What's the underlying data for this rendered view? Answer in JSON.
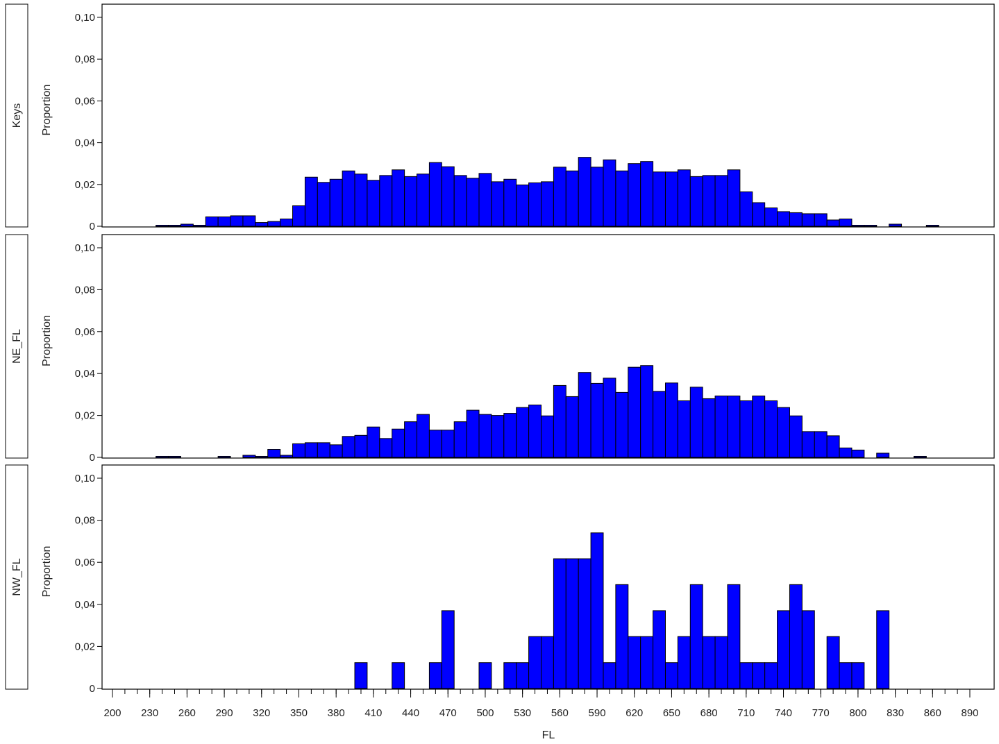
{
  "chart_data": {
    "type": "bar",
    "subtype": "histogram-panel",
    "xlabel": "FL",
    "ylabel": "Proportion",
    "bin_width": 10,
    "xlim": [
      195,
      900
    ],
    "ylim": [
      0,
      0.105
    ],
    "x_ticks": [
      200,
      230,
      260,
      290,
      320,
      350,
      380,
      410,
      440,
      470,
      500,
      530,
      560,
      590,
      620,
      650,
      680,
      710,
      740,
      770,
      800,
      830,
      860,
      890
    ],
    "y_ticks": [
      0,
      0.02,
      0.04,
      0.06,
      0.08,
      0.1
    ],
    "y_tick_labels": [
      "0",
      "0,02",
      "0,04",
      "0,06",
      "0,08",
      "0,10"
    ],
    "bar_color": "#0000ff",
    "grid": false,
    "panels": [
      {
        "name": "Keys",
        "bins": [
          {
            "x": 240,
            "y": 0.0005
          },
          {
            "x": 250,
            "y": 0.0005
          },
          {
            "x": 260,
            "y": 0.001
          },
          {
            "x": 270,
            "y": 0.0005
          },
          {
            "x": 280,
            "y": 0.0045
          },
          {
            "x": 290,
            "y": 0.0045
          },
          {
            "x": 300,
            "y": 0.005
          },
          {
            "x": 310,
            "y": 0.005
          },
          {
            "x": 320,
            "y": 0.0018
          },
          {
            "x": 330,
            "y": 0.0023
          },
          {
            "x": 340,
            "y": 0.0035
          },
          {
            "x": 350,
            "y": 0.0098
          },
          {
            "x": 360,
            "y": 0.0235
          },
          {
            "x": 370,
            "y": 0.021
          },
          {
            "x": 380,
            "y": 0.0225
          },
          {
            "x": 390,
            "y": 0.0265
          },
          {
            "x": 400,
            "y": 0.025
          },
          {
            "x": 410,
            "y": 0.022
          },
          {
            "x": 420,
            "y": 0.0243
          },
          {
            "x": 430,
            "y": 0.027
          },
          {
            "x": 440,
            "y": 0.0238
          },
          {
            "x": 450,
            "y": 0.025
          },
          {
            "x": 460,
            "y": 0.0305
          },
          {
            "x": 470,
            "y": 0.0285
          },
          {
            "x": 480,
            "y": 0.0243
          },
          {
            "x": 490,
            "y": 0.023
          },
          {
            "x": 500,
            "y": 0.0253
          },
          {
            "x": 510,
            "y": 0.0213
          },
          {
            "x": 520,
            "y": 0.0225
          },
          {
            "x": 530,
            "y": 0.0198
          },
          {
            "x": 540,
            "y": 0.0208
          },
          {
            "x": 550,
            "y": 0.0213
          },
          {
            "x": 560,
            "y": 0.0283
          },
          {
            "x": 570,
            "y": 0.0265
          },
          {
            "x": 580,
            "y": 0.033
          },
          {
            "x": 590,
            "y": 0.0283
          },
          {
            "x": 600,
            "y": 0.0318
          },
          {
            "x": 610,
            "y": 0.0265
          },
          {
            "x": 620,
            "y": 0.03
          },
          {
            "x": 630,
            "y": 0.031
          },
          {
            "x": 640,
            "y": 0.026
          },
          {
            "x": 650,
            "y": 0.026
          },
          {
            "x": 660,
            "y": 0.027
          },
          {
            "x": 670,
            "y": 0.0238
          },
          {
            "x": 680,
            "y": 0.0243
          },
          {
            "x": 690,
            "y": 0.0243
          },
          {
            "x": 700,
            "y": 0.027
          },
          {
            "x": 710,
            "y": 0.0165
          },
          {
            "x": 720,
            "y": 0.0113
          },
          {
            "x": 730,
            "y": 0.0088
          },
          {
            "x": 740,
            "y": 0.007
          },
          {
            "x": 750,
            "y": 0.0065
          },
          {
            "x": 760,
            "y": 0.006
          },
          {
            "x": 770,
            "y": 0.006
          },
          {
            "x": 780,
            "y": 0.003
          },
          {
            "x": 790,
            "y": 0.0035
          },
          {
            "x": 800,
            "y": 0.0005
          },
          {
            "x": 810,
            "y": 0.0005
          },
          {
            "x": 830,
            "y": 0.001
          },
          {
            "x": 860,
            "y": 0.0005
          }
        ]
      },
      {
        "name": "NE_FL",
        "bins": [
          {
            "x": 240,
            "y": 0.0005
          },
          {
            "x": 250,
            "y": 0.0005
          },
          {
            "x": 290,
            "y": 0.0005
          },
          {
            "x": 310,
            "y": 0.001
          },
          {
            "x": 320,
            "y": 0.0005
          },
          {
            "x": 330,
            "y": 0.0038
          },
          {
            "x": 340,
            "y": 0.001
          },
          {
            "x": 350,
            "y": 0.0065
          },
          {
            "x": 360,
            "y": 0.007
          },
          {
            "x": 370,
            "y": 0.007
          },
          {
            "x": 380,
            "y": 0.006
          },
          {
            "x": 390,
            "y": 0.01
          },
          {
            "x": 400,
            "y": 0.0105
          },
          {
            "x": 410,
            "y": 0.0145
          },
          {
            "x": 420,
            "y": 0.009
          },
          {
            "x": 430,
            "y": 0.0135
          },
          {
            "x": 440,
            "y": 0.017
          },
          {
            "x": 450,
            "y": 0.0205
          },
          {
            "x": 460,
            "y": 0.013
          },
          {
            "x": 470,
            "y": 0.013
          },
          {
            "x": 480,
            "y": 0.017
          },
          {
            "x": 490,
            "y": 0.0225
          },
          {
            "x": 500,
            "y": 0.0205
          },
          {
            "x": 510,
            "y": 0.02
          },
          {
            "x": 520,
            "y": 0.021
          },
          {
            "x": 530,
            "y": 0.0238
          },
          {
            "x": 540,
            "y": 0.025
          },
          {
            "x": 550,
            "y": 0.0198
          },
          {
            "x": 560,
            "y": 0.0343
          },
          {
            "x": 570,
            "y": 0.029
          },
          {
            "x": 580,
            "y": 0.0405
          },
          {
            "x": 590,
            "y": 0.0353
          },
          {
            "x": 600,
            "y": 0.0378
          },
          {
            "x": 610,
            "y": 0.031
          },
          {
            "x": 620,
            "y": 0.043
          },
          {
            "x": 630,
            "y": 0.0438
          },
          {
            "x": 640,
            "y": 0.0315
          },
          {
            "x": 650,
            "y": 0.0355
          },
          {
            "x": 660,
            "y": 0.027
          },
          {
            "x": 670,
            "y": 0.0335
          },
          {
            "x": 680,
            "y": 0.028
          },
          {
            "x": 690,
            "y": 0.0293
          },
          {
            "x": 700,
            "y": 0.0293
          },
          {
            "x": 710,
            "y": 0.027
          },
          {
            "x": 720,
            "y": 0.0293
          },
          {
            "x": 730,
            "y": 0.027
          },
          {
            "x": 740,
            "y": 0.0238
          },
          {
            "x": 750,
            "y": 0.0198
          },
          {
            "x": 760,
            "y": 0.0123
          },
          {
            "x": 770,
            "y": 0.0123
          },
          {
            "x": 780,
            "y": 0.0103
          },
          {
            "x": 790,
            "y": 0.0045
          },
          {
            "x": 800,
            "y": 0.0035
          },
          {
            "x": 820,
            "y": 0.002
          },
          {
            "x": 850,
            "y": 0.0005
          }
        ]
      },
      {
        "name": "NW_FL",
        "bins": [
          {
            "x": 400,
            "y": 0.0123
          },
          {
            "x": 430,
            "y": 0.0123
          },
          {
            "x": 460,
            "y": 0.0123
          },
          {
            "x": 470,
            "y": 0.037
          },
          {
            "x": 500,
            "y": 0.0123
          },
          {
            "x": 520,
            "y": 0.0123
          },
          {
            "x": 530,
            "y": 0.0123
          },
          {
            "x": 540,
            "y": 0.0247
          },
          {
            "x": 550,
            "y": 0.0247
          },
          {
            "x": 560,
            "y": 0.0617
          },
          {
            "x": 570,
            "y": 0.0617
          },
          {
            "x": 580,
            "y": 0.0617
          },
          {
            "x": 590,
            "y": 0.074
          },
          {
            "x": 600,
            "y": 0.0123
          },
          {
            "x": 610,
            "y": 0.0494
          },
          {
            "x": 620,
            "y": 0.0247
          },
          {
            "x": 630,
            "y": 0.0247
          },
          {
            "x": 640,
            "y": 0.037
          },
          {
            "x": 650,
            "y": 0.0123
          },
          {
            "x": 660,
            "y": 0.0247
          },
          {
            "x": 670,
            "y": 0.0494
          },
          {
            "x": 680,
            "y": 0.0247
          },
          {
            "x": 690,
            "y": 0.0247
          },
          {
            "x": 700,
            "y": 0.0494
          },
          {
            "x": 710,
            "y": 0.0123
          },
          {
            "x": 720,
            "y": 0.0123
          },
          {
            "x": 730,
            "y": 0.0123
          },
          {
            "x": 740,
            "y": 0.037
          },
          {
            "x": 750,
            "y": 0.0494
          },
          {
            "x": 760,
            "y": 0.037
          },
          {
            "x": 780,
            "y": 0.0247
          },
          {
            "x": 790,
            "y": 0.0123
          },
          {
            "x": 800,
            "y": 0.0123
          },
          {
            "x": 820,
            "y": 0.037
          }
        ]
      }
    ]
  }
}
